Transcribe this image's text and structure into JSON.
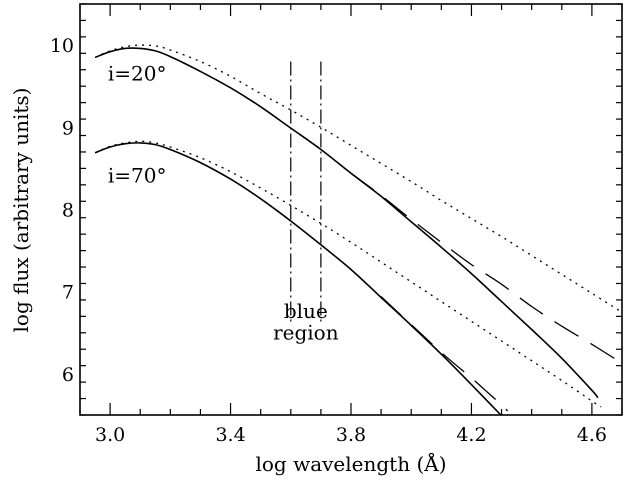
{
  "chart_data": {
    "type": "line",
    "xlabel": "log wavelength (Å)",
    "ylabel": "log flux (arbitrary units)",
    "xlim": [
      2.9,
      4.7
    ],
    "ylim": [
      5.5,
      10.5
    ],
    "x_ticks": [
      3.0,
      3.4,
      3.8,
      4.2,
      4.6
    ],
    "x_tick_labels": [
      "3.0",
      "3.4",
      "3.8",
      "4.2",
      "4.6"
    ],
    "y_ticks": [
      6,
      7,
      8,
      9,
      10
    ],
    "y_tick_labels": [
      "6",
      "7",
      "8",
      "9",
      "10"
    ],
    "grid": false,
    "annotations": [
      {
        "text": "i=20°",
        "x": 3.09,
        "y": 9.57
      },
      {
        "text": "i=70°",
        "x": 3.09,
        "y": 8.33
      },
      {
        "text": "blue",
        "x": 3.65,
        "y": 6.68
      },
      {
        "text": "region",
        "x": 3.65,
        "y": 6.42
      }
    ],
    "vertical_markers": [
      {
        "x": 3.6,
        "ymin": 6.6,
        "ymax": 9.8,
        "style": "dash-dot"
      },
      {
        "x": 3.7,
        "ymin": 6.6,
        "ymax": 9.8,
        "style": "dash-dot"
      }
    ],
    "series": [
      {
        "group": "i=20",
        "style": "solid",
        "x": [
          2.95,
          3.0,
          3.05,
          3.1,
          3.15,
          3.2,
          3.3,
          3.4,
          3.5,
          3.6,
          3.7,
          3.8,
          3.9,
          4.0,
          4.1,
          4.2,
          4.3,
          4.4,
          4.5,
          4.6,
          4.62
        ],
        "y": [
          9.85,
          9.92,
          9.96,
          9.96,
          9.93,
          9.86,
          9.68,
          9.48,
          9.25,
          8.99,
          8.73,
          8.44,
          8.16,
          7.85,
          7.54,
          7.22,
          6.88,
          6.54,
          6.19,
          5.8,
          5.71
        ]
      },
      {
        "group": "i=20",
        "style": "dashed",
        "x": [
          3.8,
          3.9,
          4.0,
          4.1,
          4.2,
          4.3,
          4.4,
          4.5,
          4.6,
          4.7
        ],
        "y": [
          8.44,
          8.17,
          7.88,
          7.6,
          7.33,
          7.09,
          6.82,
          6.58,
          6.36,
          6.13
        ]
      },
      {
        "group": "i=20",
        "style": "dotted",
        "x": [
          2.95,
          3.0,
          3.05,
          3.1,
          3.15,
          3.2,
          3.3,
          3.4,
          3.5,
          3.6,
          3.7,
          3.8,
          3.9,
          4.0,
          4.1,
          4.2,
          4.3,
          4.4,
          4.5,
          4.6,
          4.7
        ],
        "y": [
          9.85,
          9.93,
          9.98,
          10.0,
          9.99,
          9.94,
          9.8,
          9.62,
          9.41,
          9.21,
          9.0,
          8.78,
          8.56,
          8.34,
          8.11,
          7.89,
          7.67,
          7.44,
          7.21,
          6.98,
          6.75
        ]
      },
      {
        "group": "i=70",
        "style": "solid",
        "x": [
          2.95,
          3.0,
          3.05,
          3.1,
          3.15,
          3.2,
          3.3,
          3.4,
          3.5,
          3.6,
          3.7,
          3.8,
          3.9,
          4.0,
          4.1,
          4.2,
          4.3
        ],
        "y": [
          8.69,
          8.76,
          8.8,
          8.81,
          8.79,
          8.73,
          8.57,
          8.37,
          8.13,
          7.86,
          7.57,
          7.27,
          6.93,
          6.59,
          6.24,
          5.87,
          5.49
        ]
      },
      {
        "group": "i=70",
        "style": "dashed",
        "x": [
          3.9,
          4.0,
          4.1,
          4.2,
          4.24,
          4.28,
          4.32
        ],
        "y": [
          6.94,
          6.6,
          6.26,
          5.95,
          5.82,
          5.69,
          5.55
        ]
      },
      {
        "group": "i=70",
        "style": "dotted",
        "x": [
          2.95,
          3.0,
          3.05,
          3.1,
          3.15,
          3.2,
          3.3,
          3.4,
          3.5,
          3.6,
          3.7,
          3.8,
          3.9,
          4.0,
          4.1,
          4.2,
          4.3,
          4.4,
          4.5,
          4.6,
          4.63
        ],
        "y": [
          8.69,
          8.77,
          8.81,
          8.83,
          8.81,
          8.76,
          8.63,
          8.46,
          8.26,
          8.05,
          7.83,
          7.6,
          7.36,
          7.12,
          6.88,
          6.64,
          6.4,
          6.16,
          5.92,
          5.67,
          5.6
        ]
      }
    ]
  }
}
